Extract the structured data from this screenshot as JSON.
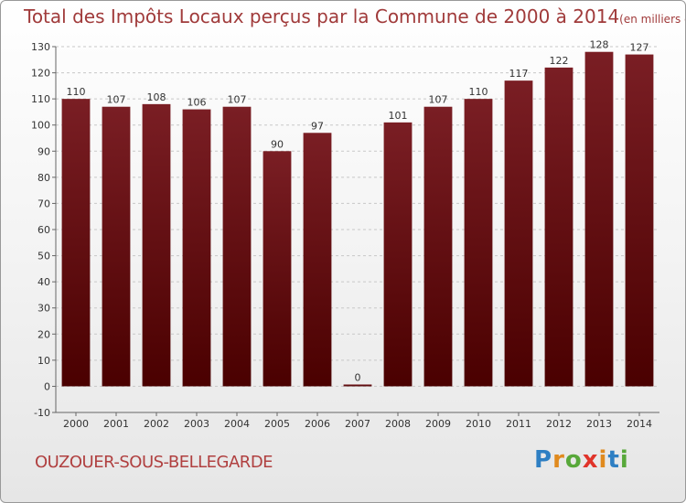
{
  "chart_data": {
    "type": "bar",
    "title": "Total des Impôts Locaux perçus par la Commune de 2000 à 2014",
    "unit_note": "(en milliers d'€)",
    "categories": [
      "2000",
      "2001",
      "2002",
      "2003",
      "2004",
      "2005",
      "2006",
      "2007",
      "2008",
      "2009",
      "2010",
      "2011",
      "2012",
      "2013",
      "2014"
    ],
    "values": [
      110,
      107,
      108,
      106,
      107,
      90,
      97,
      0,
      101,
      107,
      110,
      117,
      122,
      128,
      127
    ],
    "ylim": [
      -10,
      130
    ],
    "yticks": [
      -10,
      0,
      10,
      20,
      30,
      40,
      50,
      60,
      70,
      80,
      90,
      100,
      110,
      120,
      130
    ],
    "grid": true,
    "bar_color": "#7a1e24",
    "bar_color_dark": "#4a0000"
  },
  "commune": "OUZOUER-SOUS-BELLEGARDE",
  "brand": {
    "letters": [
      {
        "ch": "P",
        "cls": "c1"
      },
      {
        "ch": "r",
        "cls": "c2"
      },
      {
        "ch": "o",
        "cls": "c3"
      },
      {
        "ch": "x",
        "cls": "c4"
      },
      {
        "ch": "i",
        "cls": "c2"
      },
      {
        "ch": "t",
        "cls": "c1"
      },
      {
        "ch": "i",
        "cls": "c3"
      }
    ]
  }
}
